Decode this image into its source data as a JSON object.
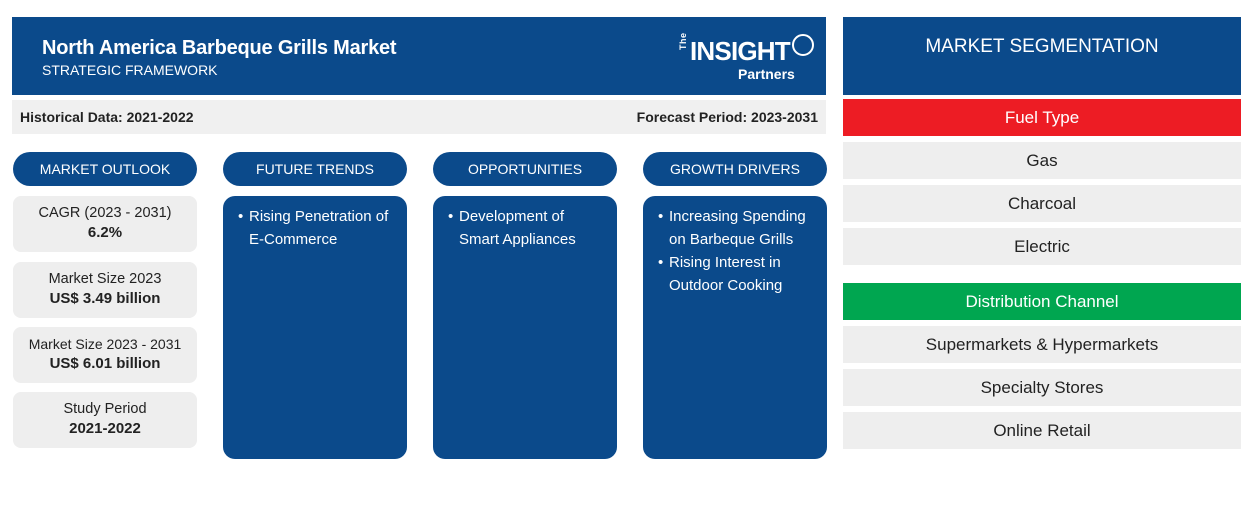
{
  "header": {
    "title": "North America Barbeque Grills Market",
    "subtitle": "STRATEGIC FRAMEWORK",
    "logo": {
      "the": "The",
      "insight": "INSIGHT",
      "partners": "Partners"
    }
  },
  "periods": {
    "historical": "Historical Data: 2021-2022",
    "forecast": "Forecast Period: 2023-2031"
  },
  "columns": {
    "outlook": "MARKET OUTLOOK",
    "trends": "FUTURE TRENDS",
    "opportunities": "OPPORTUNITIES",
    "drivers": "GROWTH DRIVERS"
  },
  "stats": [
    {
      "label": "CAGR (2023 - 2031)",
      "value": "6.2%"
    },
    {
      "label": "Market Size 2023",
      "value": "US$ 3.49 billion"
    },
    {
      "label": "Market Size 2023 - 2031",
      "value": "US$ 6.01 billion"
    },
    {
      "label": "Study Period",
      "value": "2021-2022"
    }
  ],
  "trends": [
    "Rising Penetration of E-Commerce"
  ],
  "opportunities": [
    "Development of Smart Appliances"
  ],
  "drivers": [
    "Increasing Spending on Barbeque Grills",
    "Rising Interest in Outdoor Cooking"
  ],
  "segmentation": {
    "title": "MARKET SEGMENTATION",
    "groups": [
      {
        "heading": "Fuel Type",
        "color": "#ed1c24",
        "items": [
          "Gas",
          "Charcoal",
          "Electric"
        ]
      },
      {
        "heading": "Distribution Channel",
        "color": "#00a650",
        "items": [
          "Supermarkets & Hypermarkets",
          "Specialty Stores",
          "Online Retail"
        ]
      }
    ]
  },
  "colors": {
    "navy": "#0b4a8b",
    "light_gray": "#eeeeee"
  }
}
